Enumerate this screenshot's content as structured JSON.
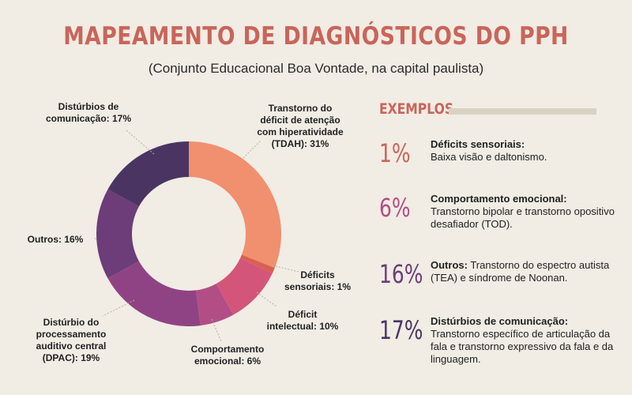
{
  "title": "MAPEAMENTO DE DIAGNÓSTICOS DO PPH",
  "subtitle": "(Conjunto Educacional Boa Vontade, na capital paulista)",
  "chart_data": {
    "type": "pie",
    "donut": true,
    "slices": [
      {
        "label_lines": [
          "Transtorno do",
          "déficit de atenção",
          "com hiperatividade"
        ],
        "pct_label": "(TDAH): 31%",
        "value": 31,
        "color": "#f0906e"
      },
      {
        "label_lines": [
          "Déficits"
        ],
        "pct_label": "sensoriais: 1%",
        "value": 1,
        "color": "#d9604f"
      },
      {
        "label_lines": [
          "Déficit"
        ],
        "pct_label": "intelectual: 10%",
        "value": 10,
        "color": "#d3567a"
      },
      {
        "label_lines": [
          "Comportamento"
        ],
        "pct_label": "emocional: 6%",
        "value": 6,
        "color": "#b24e85"
      },
      {
        "label_lines": [
          "Distúrbio do",
          "processamento",
          "auditivo central"
        ],
        "pct_label": "(DPAC): 19%",
        "value": 19,
        "color": "#8f4384"
      },
      {
        "label_lines": [],
        "pct_label": "Outros: 16%",
        "value": 16,
        "color": "#6c3d78"
      },
      {
        "label_lines": [
          "Distúrbios de"
        ],
        "pct_label": "comunicação: 17%",
        "value": 17,
        "color": "#4a3562"
      }
    ]
  },
  "examples": {
    "header": "EXEMPLOS",
    "items": [
      {
        "pct": "1%",
        "color": "#c9655a",
        "bold": "Déficits sensoriais:",
        "text": "Baixa visão e daltonismo."
      },
      {
        "pct": "6%",
        "color": "#b24e85",
        "bold": "Comportamento emocional:",
        "text": "Transtorno bipolar e transtorno opositivo desafiador (TOD)."
      },
      {
        "pct": "16%",
        "color": "#6c3d78",
        "bold": "Outros:",
        "text": "Transtorno do espectro autista (TEA) e síndrome de Noonan."
      },
      {
        "pct": "17%",
        "color": "#4a3562",
        "bold": "Distúrbios de comunicação:",
        "text": "Transtorno específico de articulação da fala e transtorno expressivo da fala e da linguagem."
      }
    ]
  }
}
